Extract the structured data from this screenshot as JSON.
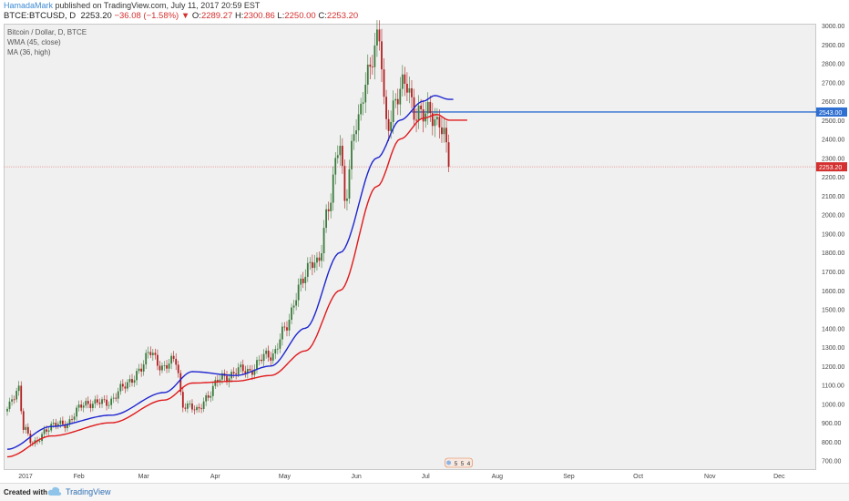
{
  "header": {
    "author": "HamadaMark",
    "published": "published on TradingView.com, July 11, 2017 20:59 EST",
    "symbol": "BTCE:BTCUSD, D",
    "last": "2253.20",
    "change": "−36.08 (−1.58%)",
    "o_label": "O:",
    "o_val": "2289.27",
    "h_label": "H:",
    "h_val": "2300.86",
    "l_label": "L:",
    "l_val": "2250.00",
    "c_label": "C:",
    "c_val": "2253.20"
  },
  "legend": {
    "title": "Bitcoin / Dollar, D, BTCE",
    "wma": "WMA (45, close)",
    "ma": "MA (36, high)"
  },
  "footer": {
    "created": "Created with",
    "brand": "TradingView"
  },
  "colors": {
    "up": "#3c7a3c",
    "down": "#b21f1f",
    "wma": "#1d25cf",
    "ma": "#e0191c",
    "hline": "#2f6fd1",
    "price_line": "#e88a8a",
    "badge_blue": "#2f6fd1",
    "badge_red": "#d3302f"
  },
  "chart_data": {
    "type": "candlestick",
    "ylim": [
      650,
      3010
    ],
    "yticks": [
      700,
      800,
      900,
      1000,
      1100,
      1200,
      1300,
      1400,
      1500,
      1600,
      1700,
      1800,
      1900,
      2000,
      2100,
      2200,
      2300,
      2400,
      2500,
      2600,
      2700,
      2800,
      2900,
      3000
    ],
    "xticks": [
      "2017",
      "Feb",
      "Mar",
      "Apr",
      "May",
      "Jun",
      "Jul",
      "Aug",
      "Sep",
      "Oct",
      "Nov",
      "Dec"
    ],
    "horizontal_line": {
      "value": 2543.0,
      "label": "2543.00"
    },
    "last_price": {
      "value": 2253.2,
      "label": "2253.20"
    },
    "event_badge": [
      "5",
      "5",
      "4"
    ],
    "price_anchors": [
      [
        "2017-01-01",
        960
      ],
      [
        "2017-01-04",
        1040
      ],
      [
        "2017-01-06",
        1095
      ],
      [
        "2017-01-08",
        880
      ],
      [
        "2017-01-12",
        780
      ],
      [
        "2017-01-18",
        870
      ],
      [
        "2017-01-26",
        900
      ],
      [
        "2017-02-05",
        1010
      ],
      [
        "2017-02-12",
        1000
      ],
      [
        "2017-02-20",
        1080
      ],
      [
        "2017-02-28",
        1190
      ],
      [
        "2017-03-04",
        1270
      ],
      [
        "2017-03-10",
        1190
      ],
      [
        "2017-03-15",
        1230
      ],
      [
        "2017-03-18",
        1000
      ],
      [
        "2017-03-24",
        960
      ],
      [
        "2017-03-28",
        1040
      ],
      [
        "2017-04-05",
        1150
      ],
      [
        "2017-04-15",
        1180
      ],
      [
        "2017-04-25",
        1260
      ],
      [
        "2017-05-01",
        1380
      ],
      [
        "2017-05-08",
        1650
      ],
      [
        "2017-05-15",
        1760
      ],
      [
        "2017-05-20",
        2020
      ],
      [
        "2017-05-25",
        2400
      ],
      [
        "2017-05-27",
        2100
      ],
      [
        "2017-06-01",
        2450
      ],
      [
        "2017-06-06",
        2780
      ],
      [
        "2017-06-11",
        2900
      ],
      [
        "2017-06-14",
        2500
      ],
      [
        "2017-06-18",
        2590
      ],
      [
        "2017-06-23",
        2700
      ],
      [
        "2017-06-27",
        2540
      ],
      [
        "2017-06-30",
        2500
      ],
      [
        "2017-07-03",
        2550
      ],
      [
        "2017-07-07",
        2500
      ],
      [
        "2017-07-09",
        2400
      ],
      [
        "2017-07-11",
        2253.2
      ]
    ],
    "wma_anchors": [
      [
        "2017-01-01",
        760
      ],
      [
        "2017-01-20",
        880
      ],
      [
        "2017-02-15",
        940
      ],
      [
        "2017-03-10",
        1060
      ],
      [
        "2017-03-22",
        1170
      ],
      [
        "2017-04-10",
        1150
      ],
      [
        "2017-04-25",
        1200
      ],
      [
        "2017-05-10",
        1400
      ],
      [
        "2017-05-25",
        1800
      ],
      [
        "2017-06-10",
        2300
      ],
      [
        "2017-06-20",
        2500
      ],
      [
        "2017-06-30",
        2600
      ],
      [
        "2017-07-05",
        2630
      ],
      [
        "2017-07-11",
        2610
      ]
    ],
    "ma_anchors": [
      [
        "2017-01-01",
        720
      ],
      [
        "2017-01-20",
        830
      ],
      [
        "2017-02-15",
        900
      ],
      [
        "2017-03-10",
        1020
      ],
      [
        "2017-03-22",
        1110
      ],
      [
        "2017-04-10",
        1120
      ],
      [
        "2017-04-25",
        1150
      ],
      [
        "2017-05-10",
        1280
      ],
      [
        "2017-05-25",
        1600
      ],
      [
        "2017-06-10",
        2150
      ],
      [
        "2017-06-20",
        2400
      ],
      [
        "2017-06-30",
        2510
      ],
      [
        "2017-07-06",
        2530
      ],
      [
        "2017-07-11",
        2500
      ]
    ]
  }
}
